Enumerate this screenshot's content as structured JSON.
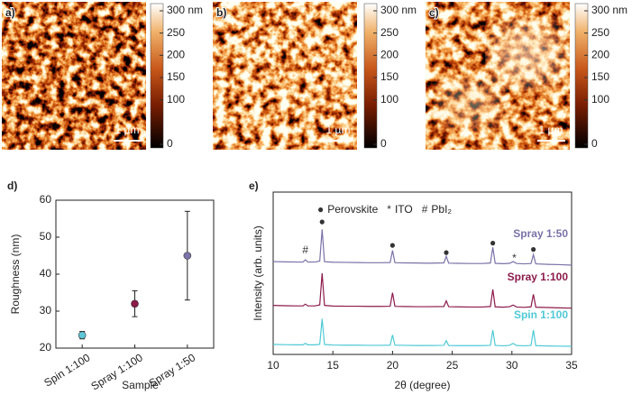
{
  "chart_data": [
    {
      "type": "image",
      "label": "a)",
      "scale_bar": "1 µm",
      "ylim": [
        0,
        300
      ],
      "yticks": [
        0,
        100,
        150,
        200,
        250,
        {
          "value": 300,
          "label": "300 nm"
        }
      ]
    },
    {
      "type": "image",
      "label": "b)",
      "scale_bar": "1 µm",
      "ylim": [
        0,
        300
      ],
      "yticks": [
        0,
        100,
        150,
        200,
        250,
        {
          "value": 300,
          "label": "300 nm"
        }
      ]
    },
    {
      "type": "image",
      "label": "c)",
      "scale_bar": "1 µm",
      "ylim": [
        0,
        300
      ],
      "yticks": [
        0,
        100,
        150,
        200,
        250,
        {
          "value": 300,
          "label": "300 nm"
        }
      ]
    },
    {
      "type": "scatter",
      "label": "d)",
      "x_label": "Sample",
      "y_label": "Roughness (nm)",
      "categories": [
        "Spin 1:100",
        "Spray 1:100",
        "Spray 1:50"
      ],
      "values": [
        23.5,
        32,
        45
      ],
      "errors": [
        1,
        3.5,
        12
      ],
      "colors": [
        "#5ec8d8",
        "#8c1a4b",
        "#7a72a8"
      ],
      "ylim": [
        20,
        60
      ],
      "yticks": [
        20,
        30,
        40,
        50,
        60
      ]
    },
    {
      "type": "line",
      "label": "e)",
      "x_label": "2θ (degree)",
      "y_label": "Intensity (arb. units)",
      "xlim": [
        10,
        35
      ],
      "xticks": [
        10,
        15,
        20,
        25,
        30,
        35
      ],
      "ylim": [
        0,
        100
      ],
      "x": [
        10,
        11,
        12,
        12.5,
        12.7,
        12.9,
        13.5,
        13.9,
        14.1,
        14.3,
        15,
        16,
        17,
        18,
        19,
        19.8,
        20,
        20.2,
        21,
        22,
        23,
        24.3,
        24.5,
        24.7,
        25.5,
        26.5,
        27.5,
        28.2,
        28.4,
        28.6,
        29.3,
        29.8,
        30.1,
        30.4,
        31,
        31.6,
        31.8,
        32,
        33,
        34,
        35
      ],
      "series": [
        {
          "name": "Spray 1:50",
          "color": "#7a72a8",
          "values": [
            57.2,
            57,
            56.9,
            56.9,
            58.3,
            56.9,
            56.9,
            57.5,
            77,
            57.1,
            56.8,
            56.7,
            56.6,
            56.5,
            56.5,
            56.6,
            64,
            56.5,
            56.4,
            56.3,
            56.2,
            56.4,
            60.5,
            56.2,
            56.1,
            56,
            56,
            56.3,
            66,
            56.1,
            55.9,
            56.1,
            57.2,
            56,
            55.8,
            56,
            61.5,
            55.8,
            55.5,
            55.3,
            55
          ]
        },
        {
          "name": "Spray 1:100",
          "color": "#8c1a4b",
          "values": [
            30.2,
            30,
            29.9,
            29.9,
            31,
            29.9,
            29.9,
            30.5,
            50,
            30.2,
            29.8,
            29.7,
            29.7,
            29.6,
            29.6,
            29.7,
            38,
            29.6,
            29.5,
            29.4,
            29.4,
            29.5,
            33,
            29.4,
            29.3,
            29.2,
            29.2,
            29.5,
            40,
            29.3,
            29.1,
            29.4,
            30.4,
            29.2,
            29,
            29.3,
            37,
            29.1,
            28.9,
            28.7,
            28.5
          ]
        },
        {
          "name": "Spin 1:100",
          "color": "#4fc9d6",
          "values": [
            6.2,
            6,
            5.9,
            5.9,
            6.8,
            5.9,
            5.9,
            6.2,
            22,
            6.1,
            5.8,
            5.7,
            5.7,
            5.6,
            5.6,
            5.7,
            12,
            5.7,
            5.6,
            5.5,
            5.5,
            5.6,
            8.5,
            5.5,
            5.4,
            5.4,
            5.4,
            5.6,
            15,
            5.5,
            5.3,
            5.6,
            6.8,
            5.5,
            5.3,
            5.5,
            15,
            5.4,
            5.2,
            5.1,
            5
          ]
        }
      ],
      "legend": [
        {
          "symbol": "●",
          "label": "Perovskite"
        },
        {
          "symbol": "*",
          "label": "ITO"
        },
        {
          "symbol": "#",
          "label": "PbI₂"
        }
      ],
      "peak_marks": [
        {
          "x": 12.7,
          "y": 64,
          "symbol": "#"
        },
        {
          "x": 14.1,
          "y": 81.5,
          "symbol": "●"
        },
        {
          "x": 20,
          "y": 67,
          "symbol": "●"
        },
        {
          "x": 24.5,
          "y": 62.5,
          "symbol": "●"
        },
        {
          "x": 28.4,
          "y": 68.5,
          "symbol": "●"
        },
        {
          "x": 30.2,
          "y": 59,
          "symbol": "*"
        },
        {
          "x": 31.8,
          "y": 64.5,
          "symbol": "●"
        }
      ]
    }
  ]
}
